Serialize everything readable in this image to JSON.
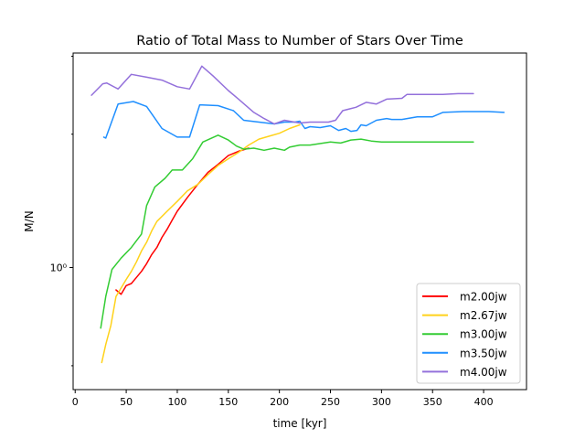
{
  "chart_data": {
    "type": "line",
    "title": "Ratio of Total Mass to Number of Stars Over Time",
    "xlabel": "time [kyr]",
    "ylabel": "M/N",
    "xlim": [
      -2,
      442
    ],
    "ylim": [
      0.53,
      3.05
    ],
    "yscale": "log",
    "x_ticks": [
      0,
      50,
      100,
      150,
      200,
      250,
      300,
      350,
      400
    ],
    "y_ticks": [
      {
        "value": 1,
        "label": "10⁰"
      }
    ],
    "legend_position": "lower right",
    "grid": false,
    "series": [
      {
        "name": "m2.00jw",
        "color": "#ff0000",
        "points": [
          [
            40,
            0.89
          ],
          [
            45,
            0.87
          ],
          [
            50,
            0.91
          ],
          [
            55,
            0.92
          ],
          [
            60,
            0.95
          ],
          [
            65,
            0.98
          ],
          [
            70,
            1.02
          ],
          [
            75,
            1.07
          ],
          [
            80,
            1.11
          ],
          [
            85,
            1.17
          ],
          [
            90,
            1.22
          ],
          [
            95,
            1.28
          ],
          [
            100,
            1.34
          ],
          [
            110,
            1.44
          ],
          [
            120,
            1.54
          ],
          [
            130,
            1.64
          ],
          [
            140,
            1.71
          ],
          [
            150,
            1.79
          ],
          [
            160,
            1.83
          ],
          [
            170,
            1.86
          ]
        ]
      },
      {
        "name": "m2.67jw",
        "color": "#ffd21a",
        "points": [
          [
            26,
            0.61
          ],
          [
            30,
            0.67
          ],
          [
            35,
            0.74
          ],
          [
            40,
            0.86
          ],
          [
            50,
            0.94
          ],
          [
            55,
            0.98
          ],
          [
            60,
            1.03
          ],
          [
            65,
            1.09
          ],
          [
            70,
            1.14
          ],
          [
            75,
            1.21
          ],
          [
            80,
            1.27
          ],
          [
            90,
            1.34
          ],
          [
            100,
            1.41
          ],
          [
            110,
            1.49
          ],
          [
            120,
            1.54
          ],
          [
            130,
            1.62
          ],
          [
            140,
            1.7
          ],
          [
            150,
            1.76
          ],
          [
            160,
            1.82
          ],
          [
            170,
            1.89
          ],
          [
            180,
            1.95
          ],
          [
            190,
            1.98
          ],
          [
            200,
            2.01
          ],
          [
            210,
            2.06
          ],
          [
            220,
            2.1
          ]
        ]
      },
      {
        "name": "m3.00jw",
        "color": "#33cc33",
        "points": [
          [
            25,
            0.73
          ],
          [
            30,
            0.86
          ],
          [
            36,
            0.99
          ],
          [
            45,
            1.05
          ],
          [
            55,
            1.11
          ],
          [
            65,
            1.19
          ],
          [
            70,
            1.38
          ],
          [
            78,
            1.52
          ],
          [
            88,
            1.59
          ],
          [
            95,
            1.66
          ],
          [
            105,
            1.66
          ],
          [
            115,
            1.76
          ],
          [
            125,
            1.92
          ],
          [
            140,
            1.99
          ],
          [
            150,
            1.94
          ],
          [
            158,
            1.88
          ],
          [
            165,
            1.85
          ],
          [
            175,
            1.86
          ],
          [
            185,
            1.84
          ],
          [
            195,
            1.86
          ],
          [
            205,
            1.84
          ],
          [
            210,
            1.87
          ],
          [
            220,
            1.89
          ],
          [
            230,
            1.89
          ],
          [
            250,
            1.92
          ],
          [
            260,
            1.91
          ],
          [
            270,
            1.94
          ],
          [
            280,
            1.95
          ],
          [
            290,
            1.93
          ],
          [
            300,
            1.92
          ],
          [
            320,
            1.92
          ],
          [
            340,
            1.92
          ],
          [
            360,
            1.92
          ],
          [
            380,
            1.92
          ],
          [
            390,
            1.92
          ]
        ]
      },
      {
        "name": "m3.50jw",
        "color": "#1f8fff",
        "points": [
          [
            28,
            1.97
          ],
          [
            30,
            1.96
          ],
          [
            42,
            2.34
          ],
          [
            57,
            2.37
          ],
          [
            70,
            2.31
          ],
          [
            85,
            2.06
          ],
          [
            100,
            1.97
          ],
          [
            112,
            1.97
          ],
          [
            122,
            2.33
          ],
          [
            140,
            2.32
          ],
          [
            155,
            2.26
          ],
          [
            165,
            2.15
          ],
          [
            180,
            2.13
          ],
          [
            195,
            2.11
          ],
          [
            205,
            2.13
          ],
          [
            215,
            2.13
          ],
          [
            220,
            2.14
          ],
          [
            225,
            2.06
          ],
          [
            230,
            2.08
          ],
          [
            240,
            2.07
          ],
          [
            250,
            2.09
          ],
          [
            258,
            2.04
          ],
          [
            265,
            2.06
          ],
          [
            270,
            2.03
          ],
          [
            276,
            2.04
          ],
          [
            280,
            2.1
          ],
          [
            285,
            2.09
          ],
          [
            295,
            2.15
          ],
          [
            305,
            2.17
          ],
          [
            310,
            2.16
          ],
          [
            320,
            2.16
          ],
          [
            335,
            2.19
          ],
          [
            350,
            2.19
          ],
          [
            360,
            2.24
          ],
          [
            380,
            2.25
          ],
          [
            405,
            2.25
          ],
          [
            420,
            2.24
          ]
        ]
      },
      {
        "name": "m4.00jw",
        "color": "#9370db",
        "points": [
          [
            16,
            2.45
          ],
          [
            27,
            2.6
          ],
          [
            31,
            2.61
          ],
          [
            42,
            2.53
          ],
          [
            55,
            2.73
          ],
          [
            70,
            2.69
          ],
          [
            85,
            2.65
          ],
          [
            100,
            2.56
          ],
          [
            112,
            2.53
          ],
          [
            124,
            2.85
          ],
          [
            135,
            2.71
          ],
          [
            150,
            2.51
          ],
          [
            160,
            2.4
          ],
          [
            175,
            2.24
          ],
          [
            185,
            2.17
          ],
          [
            195,
            2.11
          ],
          [
            205,
            2.15
          ],
          [
            220,
            2.12
          ],
          [
            230,
            2.13
          ],
          [
            248,
            2.13
          ],
          [
            255,
            2.15
          ],
          [
            262,
            2.26
          ],
          [
            275,
            2.3
          ],
          [
            285,
            2.36
          ],
          [
            295,
            2.34
          ],
          [
            305,
            2.4
          ],
          [
            320,
            2.41
          ],
          [
            325,
            2.46
          ],
          [
            340,
            2.46
          ],
          [
            360,
            2.46
          ],
          [
            375,
            2.47
          ],
          [
            390,
            2.47
          ]
        ]
      }
    ]
  }
}
